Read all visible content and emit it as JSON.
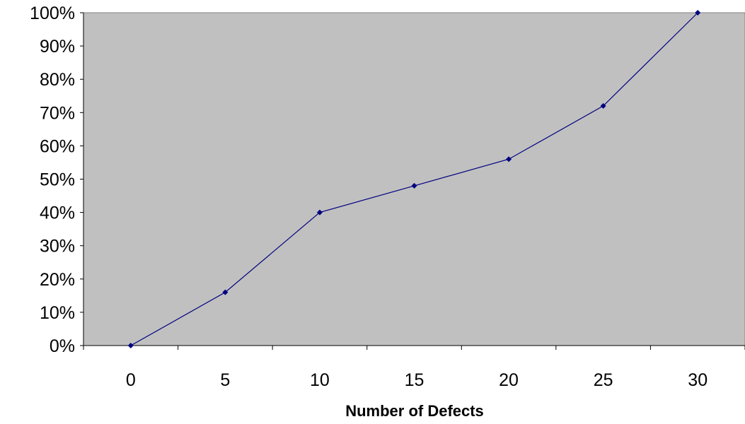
{
  "chart_data": {
    "type": "line",
    "title": "",
    "xlabel": "Number of Defects",
    "ylabel": "",
    "x": [
      0,
      5,
      10,
      15,
      20,
      25,
      30
    ],
    "x_tick_labels": [
      "0",
      "5",
      "10",
      "15",
      "20",
      "25",
      "30"
    ],
    "y_tick_labels": [
      "0%",
      "10%",
      "20%",
      "30%",
      "40%",
      "50%",
      "60%",
      "70%",
      "80%",
      "90%",
      "100%"
    ],
    "xlim": [
      -2.5,
      32.5
    ],
    "ylim": [
      0,
      100
    ],
    "grid": false,
    "legend": "none",
    "series": [
      {
        "name": "",
        "values": [
          0,
          16,
          40,
          48,
          56,
          72,
          100
        ]
      }
    ]
  },
  "colors": {
    "plot_background": "#c0c0c0",
    "plot_border": "#808080",
    "line": "#000080",
    "marker": "#000080",
    "axis": "#000000"
  }
}
